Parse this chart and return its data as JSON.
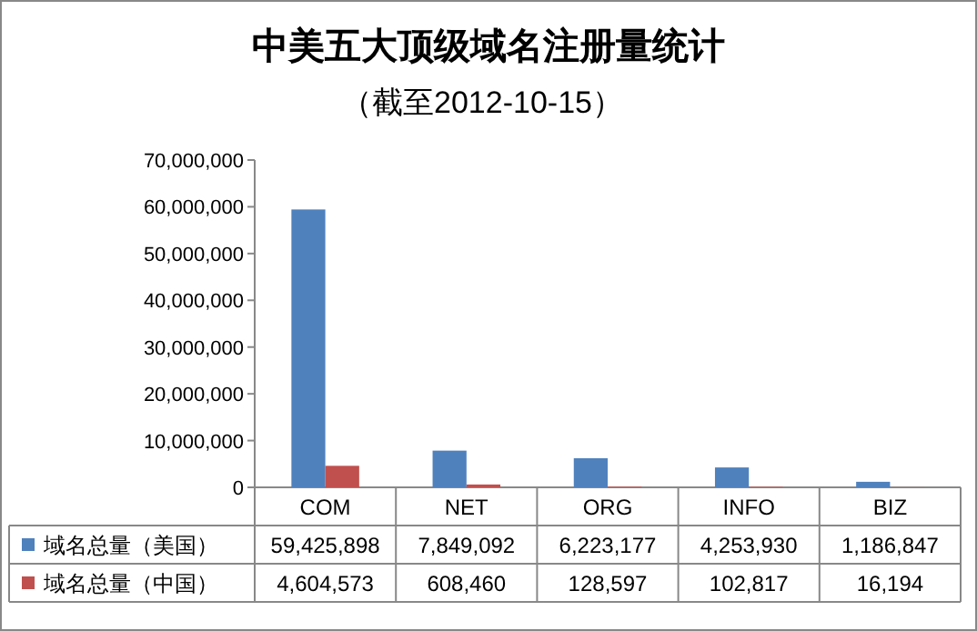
{
  "chart_data": {
    "type": "bar",
    "title": "中美五大顶级域名注册量统计",
    "subtitle": "（截至2012-10-15）",
    "categories": [
      "COM",
      "NET",
      "ORG",
      "INFO",
      "BIZ"
    ],
    "series": [
      {
        "name": "域名总量（美国）",
        "color": "#4f81bd",
        "values": [
          59425898,
          7849092,
          6223177,
          4253930,
          1186847
        ],
        "value_labels": [
          "59,425,898",
          "7,849,092",
          "6,223,177",
          "4,253,930",
          "1,186,847"
        ]
      },
      {
        "name": "域名总量（中国）",
        "color": "#c0504d",
        "values": [
          4604573,
          608460,
          128597,
          102817,
          16194
        ],
        "value_labels": [
          "4,604,573",
          "608,460",
          "128,597",
          "102,817",
          "16,194"
        ]
      }
    ],
    "ylim": [
      0,
      70000000
    ],
    "yticks": [
      0,
      {
        "value": 10000000,
        "label": "10,000,000"
      },
      {
        "value": 20000000,
        "label": "20,000,000"
      },
      {
        "value": 30000000,
        "label": "30,000,000"
      },
      {
        "value": 40000000,
        "label": "40,000,000"
      },
      {
        "value": 50000000,
        "label": "50,000,000"
      },
      {
        "value": 60000000,
        "label": "60,000,000"
      },
      {
        "value": 70000000,
        "label": "70,000,000"
      }
    ],
    "legend": "bottom"
  }
}
